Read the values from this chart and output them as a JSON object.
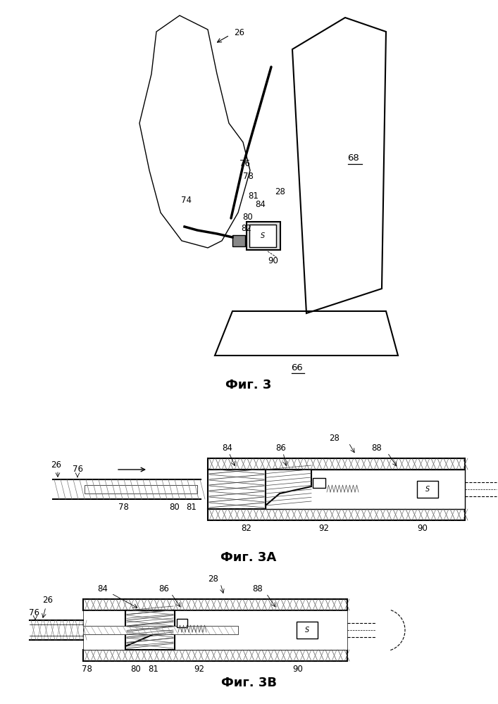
{
  "fig3_caption": "Фиг. 3",
  "fig3a_caption": "Фиг. 3А",
  "fig3b_caption": "Фиг. 3В",
  "background_color": "#ffffff",
  "line_color": "#000000",
  "hatch_color": "#000000",
  "label_color": "#000000",
  "caption_fontsize": 13,
  "label_fontsize": 8.5
}
